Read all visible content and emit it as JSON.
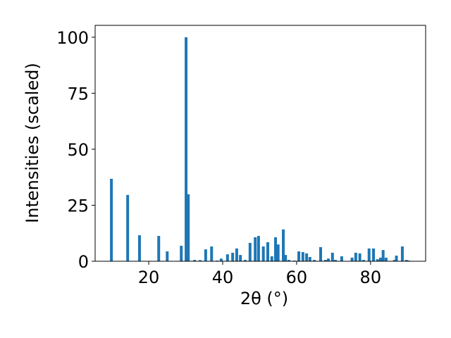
{
  "chart_data": {
    "type": "bar",
    "xlabel": "2θ (°)",
    "ylabel": "Intensities (scaled)",
    "color": "#1f77b4",
    "x": [
      9.9,
      14.3,
      17.5,
      22.7,
      25.0,
      28.8,
      30.1,
      30.7,
      32.4,
      33.9,
      35.4,
      37.0,
      38.5,
      39.6,
      41.3,
      42.7,
      43.8,
      44.8,
      46.1,
      47.4,
      48.8,
      49.7,
      51.0,
      52.2,
      53.3,
      54.3,
      55.0,
      56.4,
      57.0,
      57.9,
      59.4,
      60.6,
      61.7,
      62.7,
      63.6,
      64.8,
      66.5,
      67.8,
      68.6,
      69.7,
      70.5,
      72.2,
      75.0,
      76.0,
      77.1,
      78.1,
      79.6,
      80.8,
      81.9,
      82.7,
      83.4,
      84.2,
      86.5,
      87.0,
      88.6,
      89.7,
      90.3
    ],
    "values": [
      36.8,
      29.6,
      11.6,
      11.3,
      4.4,
      6.9,
      100,
      29.9,
      0.6,
      0.5,
      5.3,
      6.6,
      0.3,
      1.2,
      3.1,
      3.8,
      5.7,
      2.8,
      0.6,
      8.2,
      10.7,
      11.3,
      6.6,
      8.5,
      2.2,
      10.7,
      7.5,
      14.2,
      2.8,
      0.6,
      0.3,
      4.4,
      4.1,
      3.5,
      1.9,
      0.6,
      6.3,
      0.6,
      1.2,
      3.8,
      0.6,
      2.2,
      1.6,
      3.8,
      3.5,
      0.6,
      5.7,
      5.7,
      0.9,
      1.6,
      5.0,
      1.6,
      0.6,
      2.5,
      6.6,
      0.6,
      0.3
    ],
    "xlim": [
      5.5,
      94.9
    ],
    "ylim": [
      0,
      105.3
    ],
    "xticks": [
      20,
      40,
      60,
      80
    ],
    "yticks": [
      0,
      25,
      50,
      75,
      100
    ]
  }
}
